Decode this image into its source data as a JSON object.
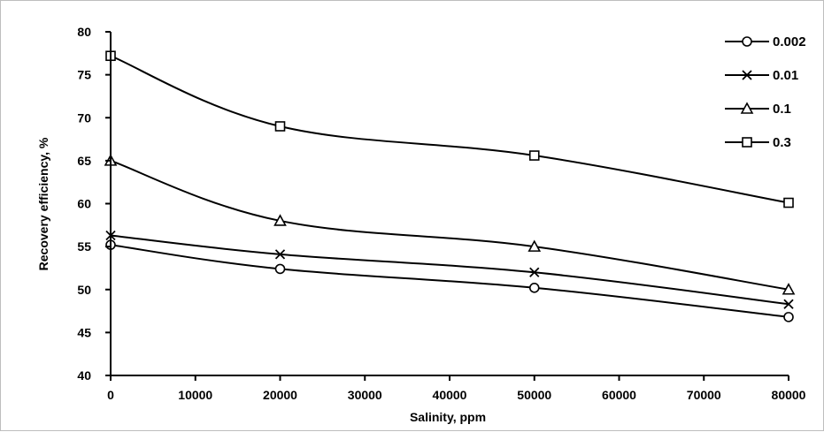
{
  "chart_data": {
    "type": "line",
    "xlabel": "Salinity, ppm",
    "ylabel": "Recovery efficiency, %",
    "xlim": [
      0,
      80000
    ],
    "ylim": [
      40,
      80
    ],
    "x_ticks": [
      0,
      10000,
      20000,
      30000,
      40000,
      50000,
      60000,
      70000,
      80000
    ],
    "y_ticks": [
      40,
      45,
      50,
      55,
      60,
      65,
      70,
      75,
      80
    ],
    "grid": false,
    "legend_position": "top-right",
    "x": [
      0,
      20000,
      50000,
      80000
    ],
    "series": [
      {
        "name": "0.002",
        "marker": "circle",
        "values": [
          55.2,
          52.4,
          50.2,
          46.8
        ]
      },
      {
        "name": "0.01",
        "marker": "x",
        "values": [
          56.3,
          54.1,
          52.0,
          48.3
        ]
      },
      {
        "name": "0.1",
        "marker": "triangle",
        "values": [
          65.0,
          58.0,
          55.0,
          50.0
        ]
      },
      {
        "name": "0.3",
        "marker": "square",
        "values": [
          77.2,
          69.0,
          65.6,
          60.1
        ]
      }
    ]
  }
}
